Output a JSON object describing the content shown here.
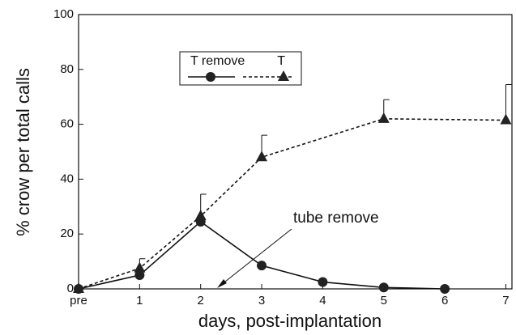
{
  "chart_data": {
    "type": "line",
    "xlabel": "days, post-implantation",
    "ylabel": "% crow per total calls",
    "annotation": "tube remove",
    "xlim": [
      0,
      7.1
    ],
    "ylim": [
      0,
      100
    ],
    "xticks": [
      {
        "value": 0,
        "label": "pre"
      },
      1,
      2,
      3,
      4,
      5,
      6,
      7
    ],
    "yticks": [
      0,
      20,
      40,
      60,
      80,
      100
    ],
    "series": [
      {
        "name": "T remove",
        "color": "#111111",
        "marker": "circle",
        "dash": false,
        "x": [
          0,
          1,
          2,
          3,
          4,
          5,
          6
        ],
        "values": [
          0,
          5,
          24.5,
          8.5,
          2.5,
          0.5,
          0
        ]
      },
      {
        "name": "T",
        "color": "#111111",
        "marker": "triangle",
        "dash": true,
        "x": [
          0,
          1,
          2,
          3,
          5,
          7
        ],
        "values": [
          0,
          7.5,
          26.5,
          48,
          62,
          61.5
        ],
        "errors": [
          0,
          3.5,
          8,
          8,
          7,
          13
        ]
      }
    ]
  }
}
